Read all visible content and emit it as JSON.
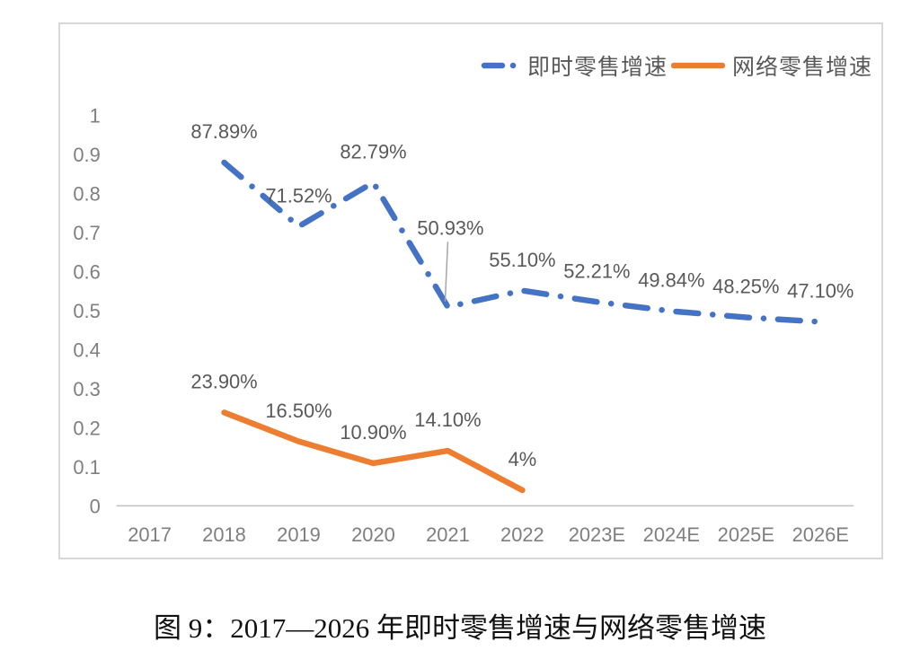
{
  "figure": {
    "caption": "图 9：2017—2026 年即时零售增速与网络零售增速"
  },
  "chart_data": {
    "type": "line",
    "title": "",
    "xlabel": "",
    "ylabel": "",
    "categories": [
      "2017",
      "2018",
      "2019",
      "2020",
      "2021",
      "2022",
      "2023E",
      "2024E",
      "2025E",
      "2026E"
    ],
    "series": [
      {
        "name": "即时零售增速",
        "color": "#4472c4",
        "style": "dash-dot",
        "values": [
          null,
          0.8789,
          0.7152,
          0.8279,
          0.5093,
          0.551,
          0.5221,
          0.4984,
          0.4825,
          0.471
        ],
        "labels": [
          null,
          "87.89%",
          "71.52%",
          "82.79%",
          "50.93%",
          "55.10%",
          "52.21%",
          "49.84%",
          "48.25%",
          "47.10%"
        ]
      },
      {
        "name": "网络零售增速",
        "color": "#ed7d31",
        "style": "solid",
        "values": [
          null,
          0.239,
          0.165,
          0.109,
          0.141,
          0.04,
          null,
          null,
          null,
          null
        ],
        "labels": [
          null,
          "23.90%",
          "16.50%",
          "10.90%",
          "14.10%",
          "4%",
          null,
          null,
          null,
          null
        ]
      }
    ],
    "ylim": [
      0,
      1
    ],
    "y_ticks": [
      "1",
      "0.9",
      "0.8",
      "0.7",
      "0.6",
      "0.5",
      "0.4",
      "0.3",
      "0.2",
      "0.1",
      "0"
    ],
    "grid": false,
    "legend_position": "top-right",
    "axis_color": "#c0c0c0",
    "tick_label_color": "#7f7f7f",
    "data_label_color": "#595959"
  }
}
